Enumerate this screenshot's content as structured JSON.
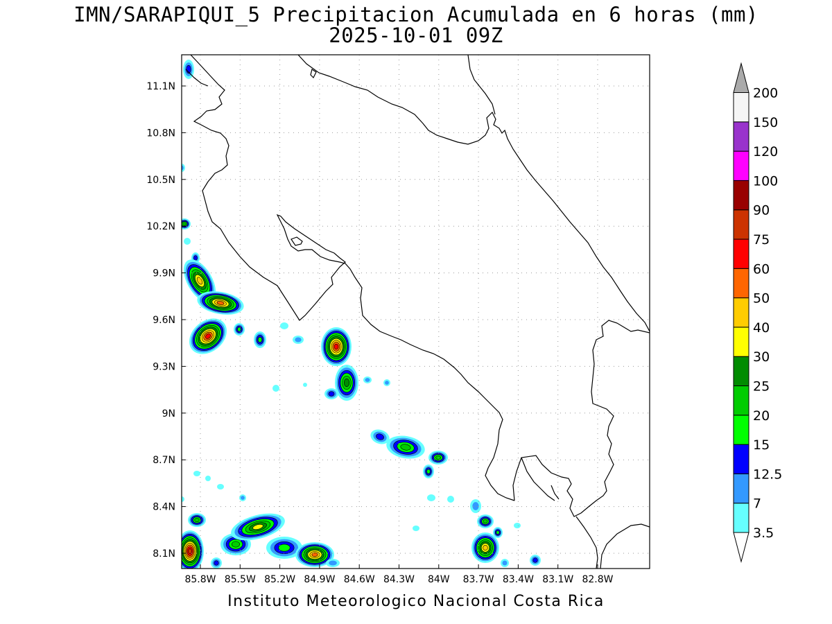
{
  "title": "IMN/SARAPIQUI_5 Precipitacion Acumulada en 6 horas (mm)",
  "subtitle": "2025-10-01 09Z",
  "footer": "Instituto Meteorologico Nacional Costa Rica",
  "map": {
    "lon_range": [
      -86.0,
      -82.5
    ],
    "lat_range": [
      8.0,
      11.3
    ],
    "x_ticks": [
      "85.8W",
      "85.5W",
      "85.2W",
      "84.9W",
      "84.6W",
      "84.3W",
      "84W",
      "83.7W",
      "83.4W",
      "83.1W",
      "82.8W"
    ],
    "y_ticks": [
      "11.1N",
      "10.8N",
      "10.5N",
      "10.2N",
      "9.9N",
      "9.6N",
      "9.3N",
      "9N",
      "8.7N",
      "8.4N",
      "8.1N"
    ],
    "grid": "dotted"
  },
  "colorbar": {
    "labels": [
      "3.5",
      "7",
      "12.5",
      "15",
      "20",
      "25",
      "30",
      "40",
      "50",
      "60",
      "75",
      "90",
      "100",
      "120",
      "150",
      "200"
    ],
    "colors": [
      "#66ffff",
      "#3399ff",
      "#0000ff",
      "#00ff00",
      "#00cc00",
      "#008c00",
      "#ffff00",
      "#ffcc00",
      "#ff6600",
      "#ff0000",
      "#cc3300",
      "#990000",
      "#ff00ff",
      "#9933cc",
      "#f5f5f5",
      "#aaaaaa"
    ]
  }
}
